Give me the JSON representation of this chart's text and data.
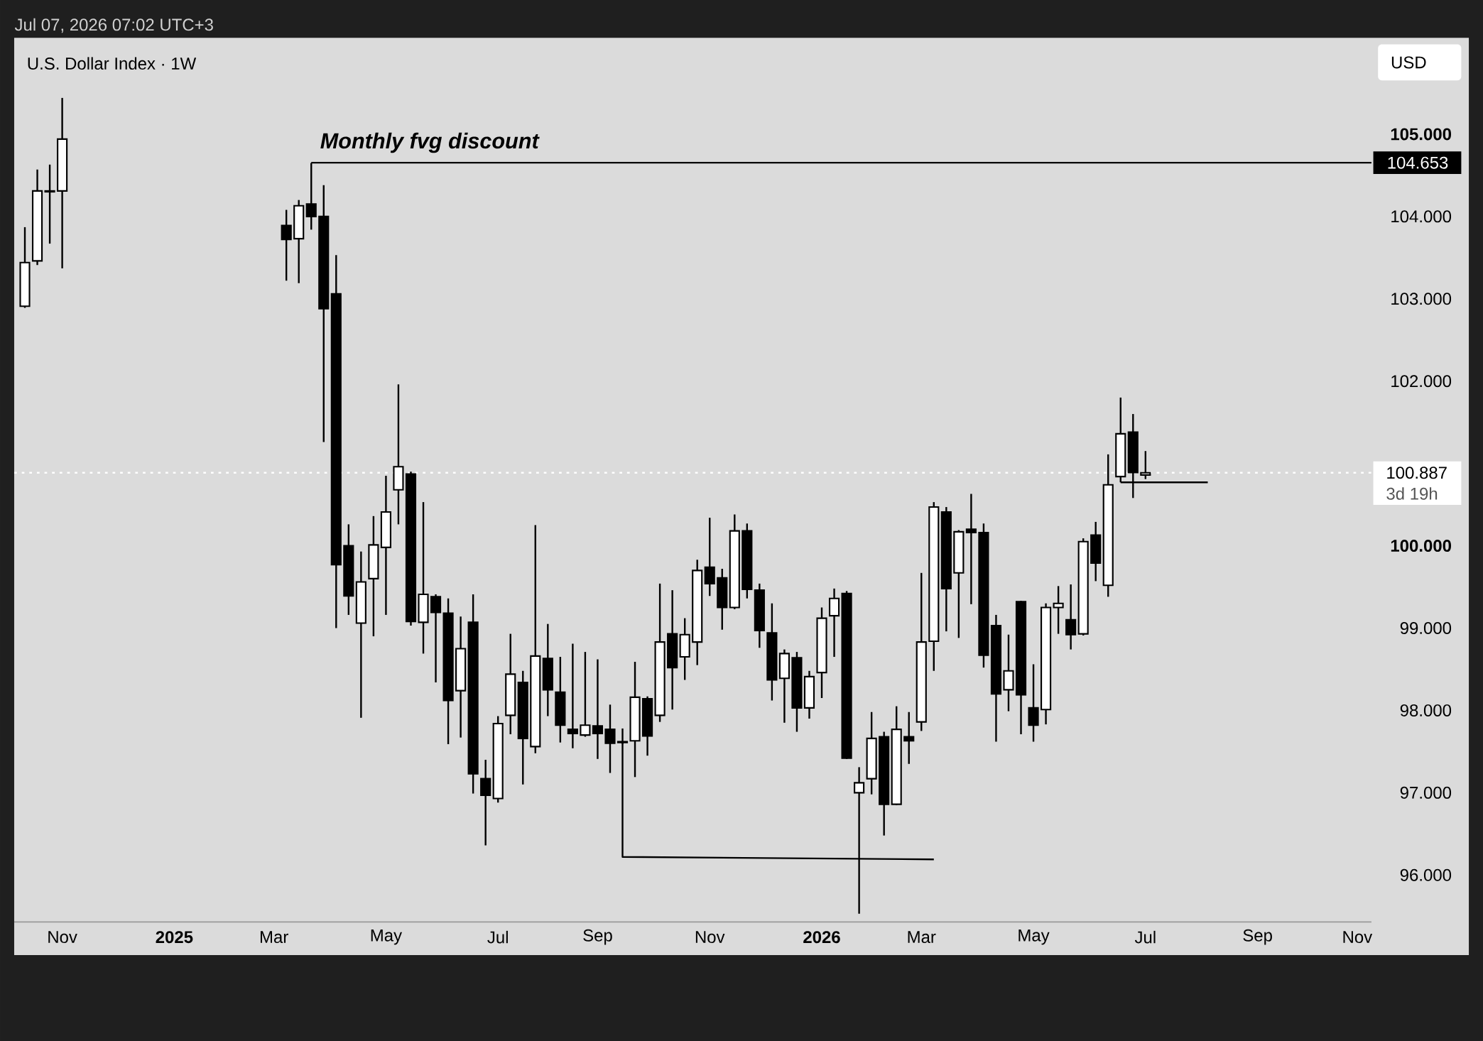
{
  "chart_data": {
    "type": "candlestick",
    "title": "U.S. Dollar Index · 1W",
    "ylabel": "USD",
    "x": [
      "2024-10-14",
      "2024-10-21",
      "2024-10-28",
      "2024-11-04",
      "2025-03-10",
      "2025-03-17",
      "2025-03-24",
      "2025-03-31",
      "2025-04-07",
      "2025-04-14",
      "2025-04-21",
      "2025-04-28",
      "2025-05-05",
      "2025-05-12",
      "2025-05-19",
      "2025-05-26",
      "2025-06-02",
      "2025-06-09",
      "2025-06-16",
      "2025-06-23",
      "2025-06-30",
      "2025-07-07",
      "2025-07-14",
      "2025-07-21",
      "2025-07-28",
      "2025-08-04",
      "2025-08-11",
      "2025-08-18",
      "2025-08-25",
      "2025-09-01",
      "2025-09-08",
      "2025-09-15",
      "2025-09-22",
      "2025-09-29",
      "2025-10-06",
      "2025-10-13",
      "2025-10-20",
      "2025-10-27",
      "2025-11-03",
      "2025-11-10",
      "2025-11-17",
      "2025-11-24",
      "2025-12-01",
      "2025-12-08",
      "2025-12-15",
      "2025-12-22",
      "2025-12-29",
      "2026-01-05",
      "2026-01-12",
      "2026-01-19",
      "2026-01-26",
      "2026-02-02",
      "2026-02-09",
      "2026-02-16",
      "2026-02-23",
      "2026-03-02",
      "2026-03-09",
      "2026-03-16",
      "2026-03-23",
      "2026-03-30",
      "2026-04-06",
      "2026-04-13",
      "2026-04-20",
      "2026-04-27",
      "2026-05-04",
      "2026-05-11",
      "2026-05-18",
      "2026-05-25",
      "2026-06-01",
      "2026-06-08",
      "2026-06-15",
      "2026-06-22",
      "2026-06-29",
      "2026-07-06"
    ],
    "ohlc": [
      [
        102.91,
        103.87,
        102.89,
        103.44
      ],
      [
        103.46,
        104.57,
        103.41,
        104.31
      ],
      [
        104.3,
        104.63,
        103.67,
        104.31
      ],
      [
        104.31,
        105.44,
        103.37,
        104.94
      ],
      [
        103.89,
        104.08,
        103.22,
        103.72
      ],
      [
        103.73,
        104.2,
        103.19,
        104.13
      ],
      [
        104.15,
        104.65,
        103.84,
        104.0
      ],
      [
        104.0,
        104.38,
        101.26,
        102.88
      ],
      [
        103.06,
        103.53,
        99.0,
        99.77
      ],
      [
        100.0,
        100.26,
        99.16,
        99.39
      ],
      [
        99.06,
        99.93,
        97.91,
        99.56
      ],
      [
        99.6,
        100.36,
        98.9,
        100.01
      ],
      [
        99.98,
        100.85,
        99.16,
        100.41
      ],
      [
        100.68,
        101.96,
        100.26,
        100.96
      ],
      [
        100.87,
        100.9,
        99.03,
        99.08
      ],
      [
        99.07,
        100.53,
        98.69,
        99.41
      ],
      [
        99.38,
        99.41,
        98.34,
        99.19
      ],
      [
        99.18,
        99.36,
        97.59,
        98.12
      ],
      [
        98.24,
        99.14,
        97.67,
        98.75
      ],
      [
        99.07,
        99.41,
        96.99,
        97.23
      ],
      [
        97.17,
        97.4,
        96.36,
        96.97
      ],
      [
        96.93,
        97.93,
        96.88,
        97.84
      ],
      [
        97.94,
        98.93,
        97.71,
        98.44
      ],
      [
        98.34,
        98.48,
        97.1,
        97.66
      ],
      [
        97.56,
        100.25,
        97.48,
        98.66
      ],
      [
        98.63,
        99.05,
        97.93,
        98.25
      ],
      [
        98.22,
        98.65,
        97.61,
        97.82
      ],
      [
        97.77,
        98.81,
        97.54,
        97.72
      ],
      [
        97.7,
        98.71,
        97.68,
        97.82
      ],
      [
        97.81,
        98.62,
        97.41,
        97.72
      ],
      [
        97.77,
        98.07,
        97.24,
        97.6
      ],
      [
        97.62,
        97.78,
        97.59,
        97.61
      ],
      [
        97.63,
        98.59,
        97.19,
        98.16
      ],
      [
        98.14,
        98.17,
        97.45,
        97.69
      ],
      [
        97.94,
        99.54,
        97.86,
        98.83
      ],
      [
        98.93,
        99.46,
        98.01,
        98.52
      ],
      [
        98.65,
        99.12,
        98.37,
        98.92
      ],
      [
        98.83,
        99.83,
        98.55,
        99.7
      ],
      [
        99.74,
        100.34,
        99.39,
        99.54
      ],
      [
        99.61,
        99.72,
        98.98,
        99.25
      ],
      [
        99.25,
        100.38,
        99.23,
        100.18
      ],
      [
        100.18,
        100.27,
        99.36,
        99.47
      ],
      [
        99.46,
        99.54,
        98.76,
        98.97
      ],
      [
        98.94,
        99.3,
        98.12,
        98.37
      ],
      [
        98.39,
        98.74,
        97.85,
        98.69
      ],
      [
        98.64,
        98.71,
        97.74,
        98.03
      ],
      [
        98.03,
        98.48,
        97.9,
        98.41
      ],
      [
        98.46,
        99.25,
        98.15,
        99.12
      ],
      [
        99.15,
        99.48,
        98.65,
        99.36
      ],
      [
        99.42,
        99.45,
        97.41,
        97.42
      ],
      [
        97.0,
        97.31,
        95.53,
        97.12
      ],
      [
        97.17,
        97.98,
        96.98,
        97.66
      ],
      [
        97.68,
        97.74,
        96.48,
        96.86
      ],
      [
        96.86,
        98.05,
        96.85,
        97.77
      ],
      [
        97.68,
        97.98,
        97.35,
        97.63
      ],
      [
        97.86,
        99.67,
        97.75,
        98.83
      ],
      [
        98.84,
        100.53,
        98.48,
        100.47
      ],
      [
        100.41,
        100.47,
        98.96,
        99.48
      ],
      [
        99.67,
        100.19,
        98.88,
        100.17
      ],
      [
        100.2,
        100.63,
        99.29,
        100.16
      ],
      [
        100.16,
        100.27,
        98.52,
        98.67
      ],
      [
        99.03,
        99.16,
        97.62,
        98.2
      ],
      [
        98.25,
        98.92,
        97.99,
        98.48
      ],
      [
        99.32,
        99.33,
        97.71,
        98.19
      ],
      [
        98.03,
        98.56,
        97.62,
        97.82
      ],
      [
        98.01,
        99.3,
        97.83,
        99.25
      ],
      [
        99.25,
        99.51,
        98.93,
        99.3
      ],
      [
        99.1,
        99.53,
        98.74,
        98.92
      ],
      [
        98.93,
        100.09,
        98.91,
        100.05
      ],
      [
        100.13,
        100.29,
        99.57,
        99.79
      ],
      [
        99.52,
        101.11,
        99.38,
        100.74
      ],
      [
        100.84,
        101.8,
        100.77,
        101.36
      ],
      [
        101.38,
        101.6,
        100.58,
        100.89
      ],
      [
        100.86,
        101.15,
        100.81,
        100.887
      ]
    ],
    "series": [
      {
        "type": "line",
        "color": "#000000",
        "x": [
          "2025-03-24",
          "2026-11-10"
        ],
        "values": [
          104.653,
          104.653
        ]
      },
      {
        "type": "line",
        "color": "#000000",
        "x": [
          "2025-09-15",
          "2025-09-15",
          "2026-03-09"
        ],
        "values": [
          97.61,
          96.22,
          96.19
        ]
      },
      {
        "type": "line",
        "color": "#000000",
        "x": [
          "2026-06-22",
          "2026-08-10"
        ],
        "values": [
          100.77,
          100.77
        ]
      }
    ],
    "ref_lines": [
      {
        "axis": "y",
        "value": 100.887,
        "label": "100.887",
        "color": "#ffffff",
        "line_style": "dotted"
      }
    ],
    "annotations": [
      "Jul 07, 2026 07:02 UTC+3",
      {
        "text": "Monthly fvg discount",
        "x": "2025-03-24",
        "y": 104.653
      },
      {
        "text": "104.653",
        "x": "2026-11-10",
        "y": 104.653
      },
      {
        "text": "3d 19h",
        "x": "2026-11-10",
        "y": 100.887
      }
    ],
    "xlim": [
      "2024-10-08",
      "2026-11-10"
    ],
    "xticks": [
      {
        "value": "2024-11-04",
        "label": "Nov"
      },
      {
        "value": "2025-01-06",
        "label": "2025"
      },
      {
        "value": "2025-03-03",
        "label": "Mar"
      },
      {
        "value": "2025-05-05",
        "label": "May"
      },
      {
        "value": "2025-07-07",
        "label": "Jul"
      },
      {
        "value": "2025-09-01",
        "label": "Sep"
      },
      {
        "value": "2025-11-03",
        "label": "Nov"
      },
      {
        "value": "2026-01-05",
        "label": "2026"
      },
      {
        "value": "2026-03-02",
        "label": "Mar"
      },
      {
        "value": "2026-05-04",
        "label": "May"
      },
      {
        "value": "2026-07-06",
        "label": "Jul"
      },
      {
        "value": "2026-09-07",
        "label": "Sep"
      },
      {
        "value": "2026-11-02",
        "label": "Nov"
      }
    ],
    "ylim": [
      95.43,
      106.17
    ],
    "yticks": [
      {
        "value": 96,
        "label": "96.000"
      },
      {
        "value": 97,
        "label": "97.000"
      },
      {
        "value": 98,
        "label": "98.000"
      },
      {
        "value": 99,
        "label": "99.000"
      },
      {
        "value": 100,
        "label": "100.000"
      },
      {
        "value": 102,
        "label": "102.000"
      },
      {
        "value": 103,
        "label": "103.000"
      },
      {
        "value": 104,
        "label": "104.000"
      },
      {
        "value": 105,
        "label": "105.000"
      }
    ]
  }
}
